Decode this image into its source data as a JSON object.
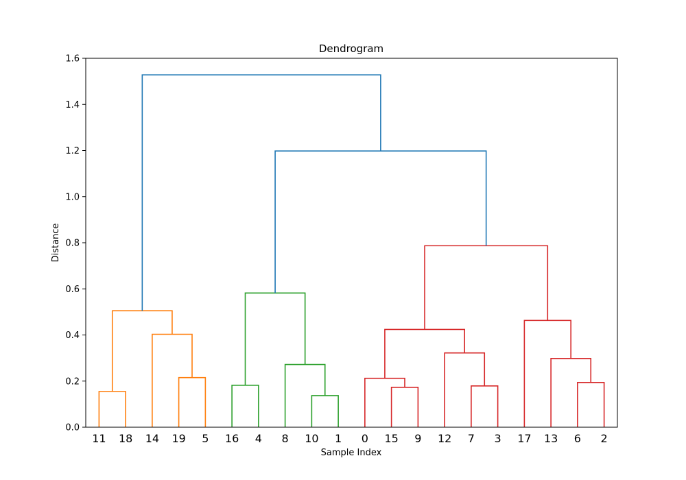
{
  "chart_data": {
    "type": "dendrogram",
    "title": "Dendrogram",
    "xlabel": "Sample Index",
    "ylabel": "Distance",
    "ylim": [
      0,
      1.6
    ],
    "yticks": [
      "0.0",
      "0.2",
      "0.4",
      "0.6",
      "0.8",
      "1.0",
      "1.2",
      "1.4",
      "1.6"
    ],
    "leaves": [
      "11",
      "18",
      "14",
      "19",
      "5",
      "16",
      "4",
      "8",
      "10",
      "1",
      "0",
      "15",
      "9",
      "12",
      "7",
      "3",
      "17",
      "13",
      "6",
      "2"
    ],
    "cluster_colors": {
      "orange": "#ff7f0e",
      "green": "#2ca02c",
      "red": "#d62728",
      "blue": "#1f77b4"
    },
    "merges": [
      {
        "id": "m1",
        "left": "leaf:11",
        "right": "leaf:18",
        "height": 0.155,
        "color": "orange"
      },
      {
        "id": "m2",
        "left": "leaf:19",
        "right": "leaf:5",
        "height": 0.215,
        "color": "orange"
      },
      {
        "id": "m3",
        "left": "leaf:14",
        "right": "m2",
        "height": 0.403,
        "color": "orange"
      },
      {
        "id": "m4",
        "left": "m1",
        "right": "m3",
        "height": 0.505,
        "color": "orange"
      },
      {
        "id": "m5",
        "left": "leaf:16",
        "right": "leaf:4",
        "height": 0.182,
        "color": "green"
      },
      {
        "id": "m6",
        "left": "leaf:10",
        "right": "leaf:1",
        "height": 0.137,
        "color": "green"
      },
      {
        "id": "m7",
        "left": "leaf:8",
        "right": "m6",
        "height": 0.272,
        "color": "green"
      },
      {
        "id": "m8",
        "left": "m5",
        "right": "m7",
        "height": 0.582,
        "color": "green"
      },
      {
        "id": "m9",
        "left": "leaf:15",
        "right": "leaf:9",
        "height": 0.173,
        "color": "red"
      },
      {
        "id": "m10",
        "left": "leaf:0",
        "right": "m9",
        "height": 0.212,
        "color": "red"
      },
      {
        "id": "m11",
        "left": "leaf:7",
        "right": "leaf:3",
        "height": 0.179,
        "color": "red"
      },
      {
        "id": "m12",
        "left": "leaf:12",
        "right": "m11",
        "height": 0.322,
        "color": "red"
      },
      {
        "id": "m13",
        "left": "m10",
        "right": "m12",
        "height": 0.424,
        "color": "red"
      },
      {
        "id": "m14",
        "left": "leaf:6",
        "right": "leaf:2",
        "height": 0.194,
        "color": "red"
      },
      {
        "id": "m15",
        "left": "leaf:13",
        "right": "m14",
        "height": 0.298,
        "color": "red"
      },
      {
        "id": "m16",
        "left": "leaf:17",
        "right": "m15",
        "height": 0.463,
        "color": "red"
      },
      {
        "id": "m17",
        "left": "m13",
        "right": "m16",
        "height": 0.787,
        "color": "red"
      },
      {
        "id": "m18",
        "left": "m8",
        "right": "m17",
        "height": 1.198,
        "color": "blue"
      },
      {
        "id": "m19",
        "left": "m4",
        "right": "m18",
        "height": 1.528,
        "color": "blue"
      }
    ]
  }
}
